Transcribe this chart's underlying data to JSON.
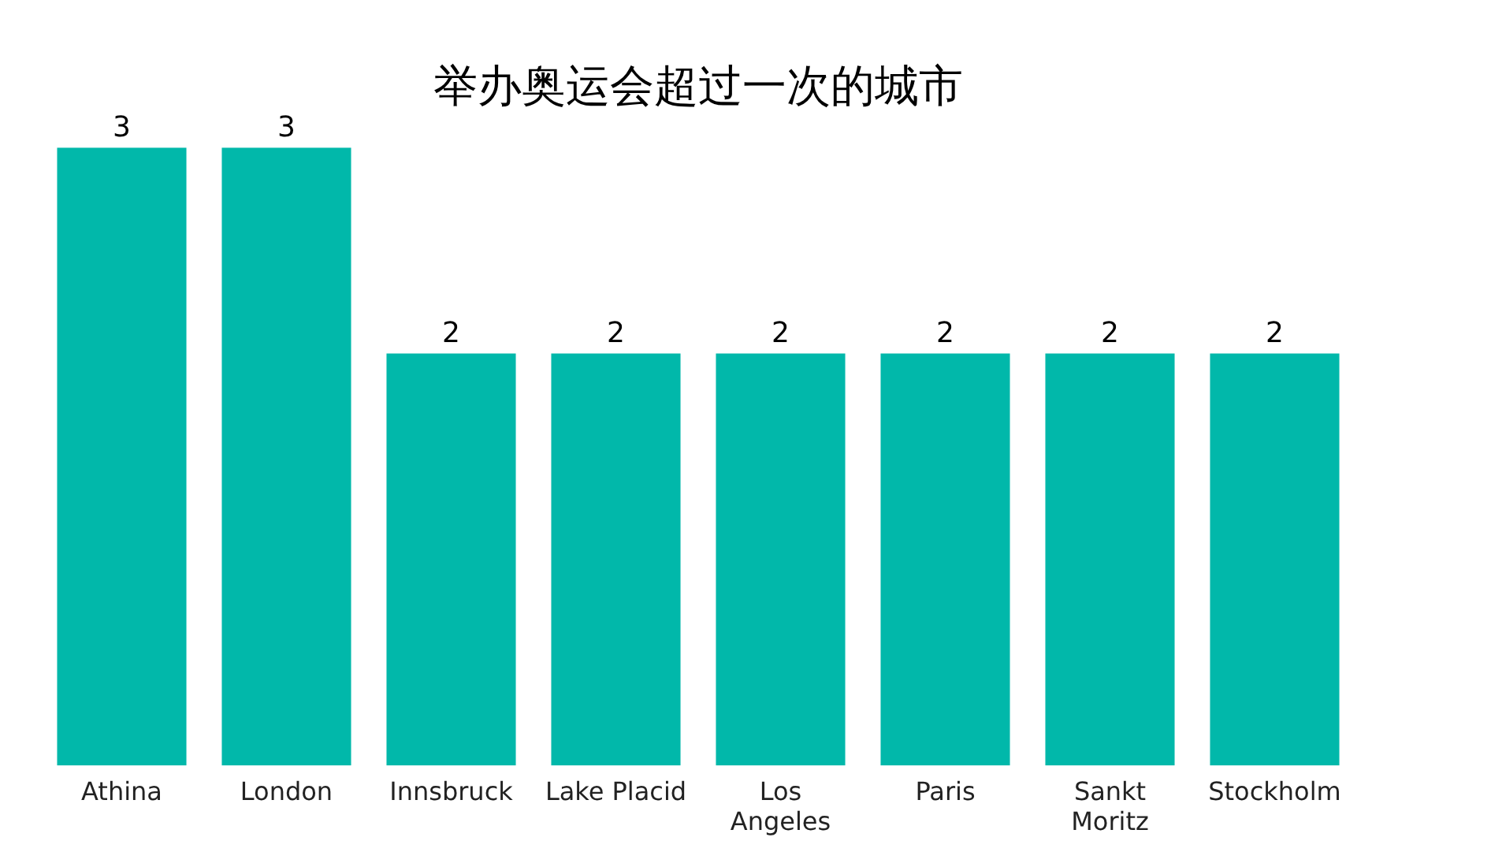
{
  "chart_data": {
    "type": "bar",
    "title": "举办奥运会超过一次的城市",
    "categories": [
      "Athina",
      "London",
      "Innsbruck",
      "Lake Placid",
      "Los Angeles",
      "Paris",
      "Sankt Moritz",
      "Stockholm"
    ],
    "values": [
      3,
      3,
      2,
      2,
      2,
      2,
      2,
      2
    ],
    "color": "#01b8aa",
    "data_labels": true,
    "grid": false,
    "legend": false
  }
}
